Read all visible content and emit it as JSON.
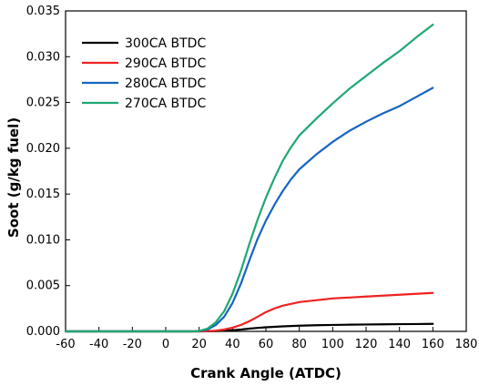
{
  "chart_data": {
    "type": "line",
    "title": "",
    "xlabel": "Crank Angle (ATDC)",
    "ylabel": "Soot (g/kg fuel)",
    "xlim": [
      -60,
      180
    ],
    "ylim": [
      0,
      0.035
    ],
    "xticks": [
      "-60",
      "-40",
      "-20",
      "0",
      "20",
      "40",
      "60",
      "80",
      "100",
      "120",
      "140",
      "160",
      "180"
    ],
    "yticks": [
      "0.000",
      "0.005",
      "0.010",
      "0.015",
      "0.020",
      "0.025",
      "0.030",
      "0.035"
    ],
    "grid": false,
    "legend_position": "top-left",
    "series": [
      {
        "name": "300CA BTDC",
        "color": "#000000",
        "x": [
          -60,
          20,
          25,
          30,
          35,
          40,
          45,
          50,
          55,
          60,
          70,
          80,
          90,
          100,
          110,
          120,
          130,
          140,
          150,
          160
        ],
        "y": [
          0,
          0,
          1e-05,
          3e-05,
          7e-05,
          0.00013,
          0.0002,
          0.0003,
          0.00038,
          0.00045,
          0.00055,
          0.00062,
          0.00067,
          0.0007,
          0.00073,
          0.00075,
          0.00077,
          0.00079,
          0.0008,
          0.00082
        ]
      },
      {
        "name": "290CA BTDC",
        "color": "#ee2222",
        "x": [
          -60,
          20,
          25,
          30,
          35,
          40,
          45,
          50,
          55,
          60,
          65,
          70,
          80,
          90,
          100,
          110,
          120,
          130,
          140,
          150,
          160
        ],
        "y": [
          0,
          0,
          2e-05,
          8e-05,
          0.0002,
          0.0004,
          0.0007,
          0.0011,
          0.0016,
          0.0021,
          0.0025,
          0.0028,
          0.0032,
          0.0034,
          0.0036,
          0.0037,
          0.0038,
          0.0039,
          0.004,
          0.0041,
          0.0042
        ]
      },
      {
        "name": "280CA BTDC",
        "color": "#1565c0",
        "x": [
          -60,
          15,
          20,
          25,
          30,
          35,
          40,
          45,
          50,
          55,
          60,
          65,
          70,
          75,
          80,
          90,
          100,
          110,
          120,
          130,
          140,
          150,
          160
        ],
        "y": [
          0,
          0,
          3e-05,
          0.0002,
          0.0007,
          0.0016,
          0.0031,
          0.0052,
          0.0077,
          0.0101,
          0.0121,
          0.0138,
          0.0153,
          0.0166,
          0.0177,
          0.0193,
          0.0207,
          0.0219,
          0.0229,
          0.0238,
          0.0246,
          0.0256,
          0.0266
        ]
      },
      {
        "name": "270CA BTDC",
        "color": "#1fa872",
        "x": [
          -60,
          15,
          20,
          25,
          30,
          35,
          40,
          45,
          50,
          55,
          60,
          65,
          70,
          75,
          80,
          90,
          100,
          110,
          120,
          130,
          140,
          150,
          160
        ],
        "y": [
          0,
          0,
          5e-05,
          0.0003,
          0.001,
          0.0022,
          0.0041,
          0.0066,
          0.0095,
          0.0122,
          0.0146,
          0.0167,
          0.0186,
          0.0201,
          0.0214,
          0.0232,
          0.0249,
          0.0265,
          0.0279,
          0.0293,
          0.0306,
          0.0321,
          0.0335
        ]
      }
    ]
  }
}
